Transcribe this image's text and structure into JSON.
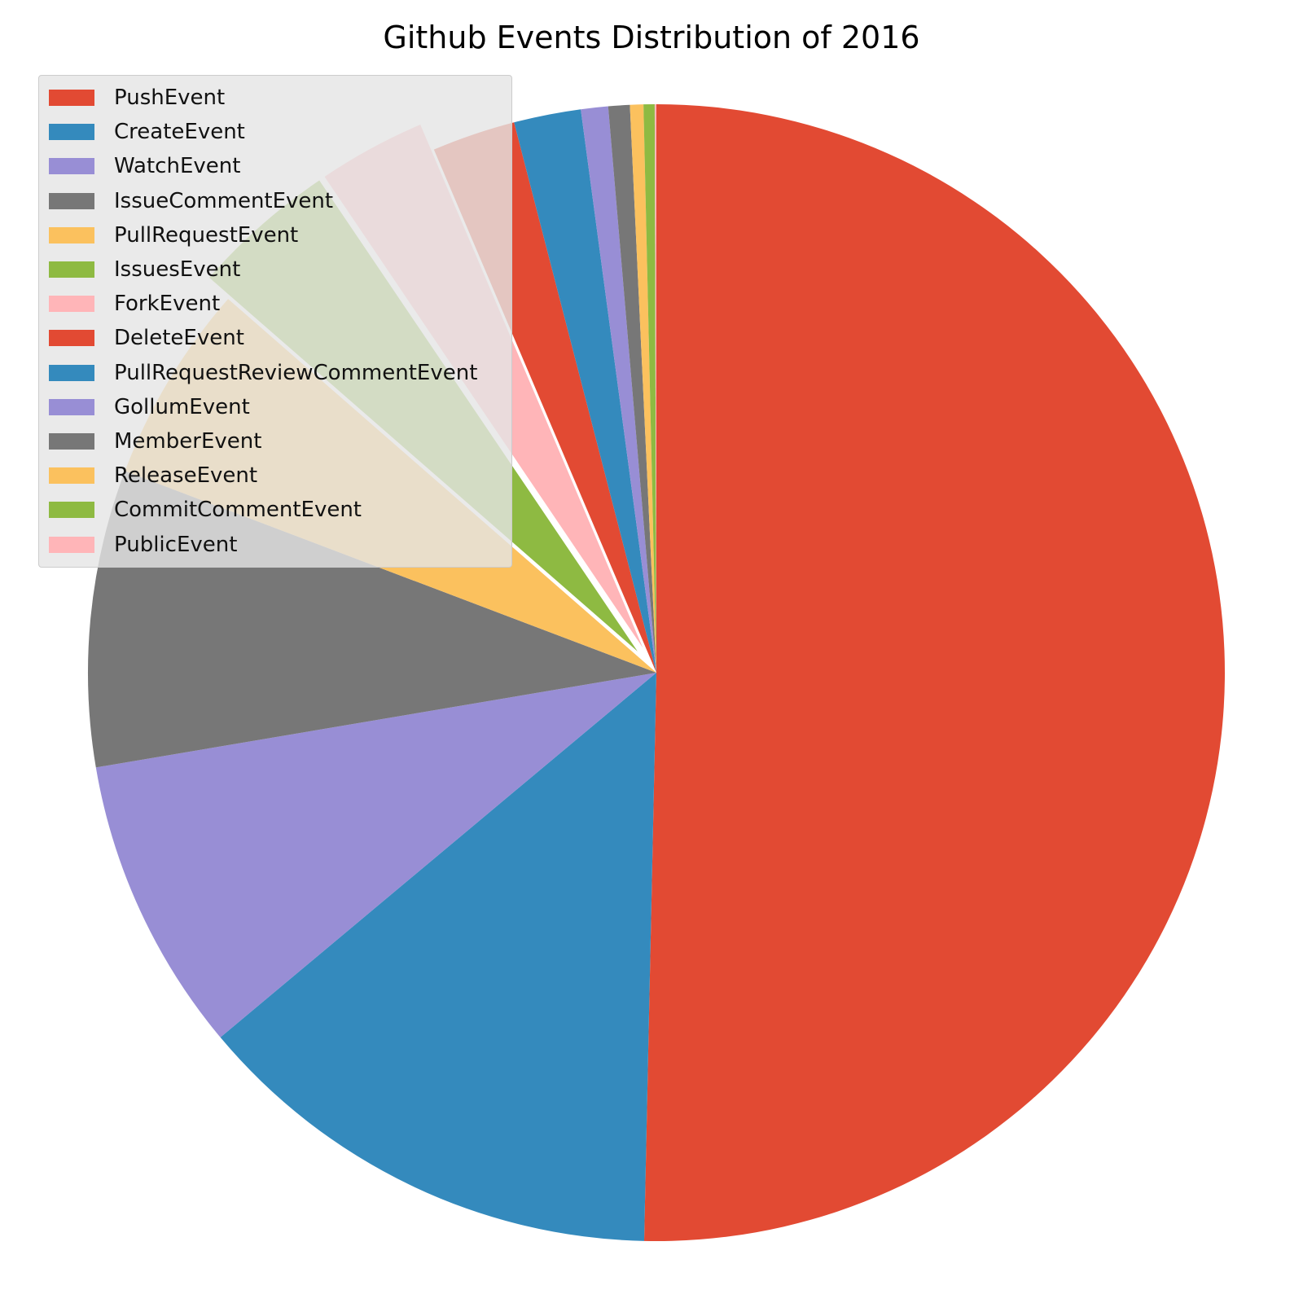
{
  "chart_data": {
    "type": "pie",
    "title": "Github Events Distribution of 2016",
    "start_angle_deg": 90,
    "direction": "clockwise",
    "legend_position": "top-left",
    "slices": [
      {
        "label": "PushEvent",
        "value": 52.86,
        "color": "#E24A33",
        "explode": 0
      },
      {
        "label": "CreateEvent",
        "value": 14.25,
        "color": "#348ABD",
        "explode": 0
      },
      {
        "label": "WatchEvent",
        "value": 8.84,
        "color": "#988ED5",
        "explode": 0
      },
      {
        "label": "IssueCommentEvent",
        "value": 8.86,
        "color": "#777777",
        "explode": 0
      },
      {
        "label": "PullRequestEvent",
        "value": 5.93,
        "color": "#FBC15E",
        "explode": 0
      },
      {
        "label": "IssuesEvent",
        "value": 4.33,
        "color": "#8EBA42",
        "explode": 0.05
      },
      {
        "label": "ForkEvent",
        "value": 3.21,
        "color": "#FFB5B8",
        "explode": 0.05
      },
      {
        "label": "DeleteEvent",
        "value": 2.49,
        "color": "#E24A33",
        "explode": 0
      },
      {
        "label": "PullRequestReviewCommentEvent",
        "value": 2.0,
        "color": "#348ABD",
        "explode": 0
      },
      {
        "label": "GollumEvent",
        "value": 0.81,
        "color": "#988ED5",
        "explode": 0
      },
      {
        "label": "MemberEvent",
        "value": 0.64,
        "color": "#777777",
        "explode": 0
      },
      {
        "label": "ReleaseEvent",
        "value": 0.4,
        "color": "#FBC15E",
        "explode": 0
      },
      {
        "label": "CommitCommentEvent",
        "value": 0.33,
        "color": "#8EBA42",
        "explode": 0
      },
      {
        "label": "PublicEvent",
        "value": 0.05,
        "color": "#FFB5B8",
        "explode": 0
      }
    ]
  }
}
